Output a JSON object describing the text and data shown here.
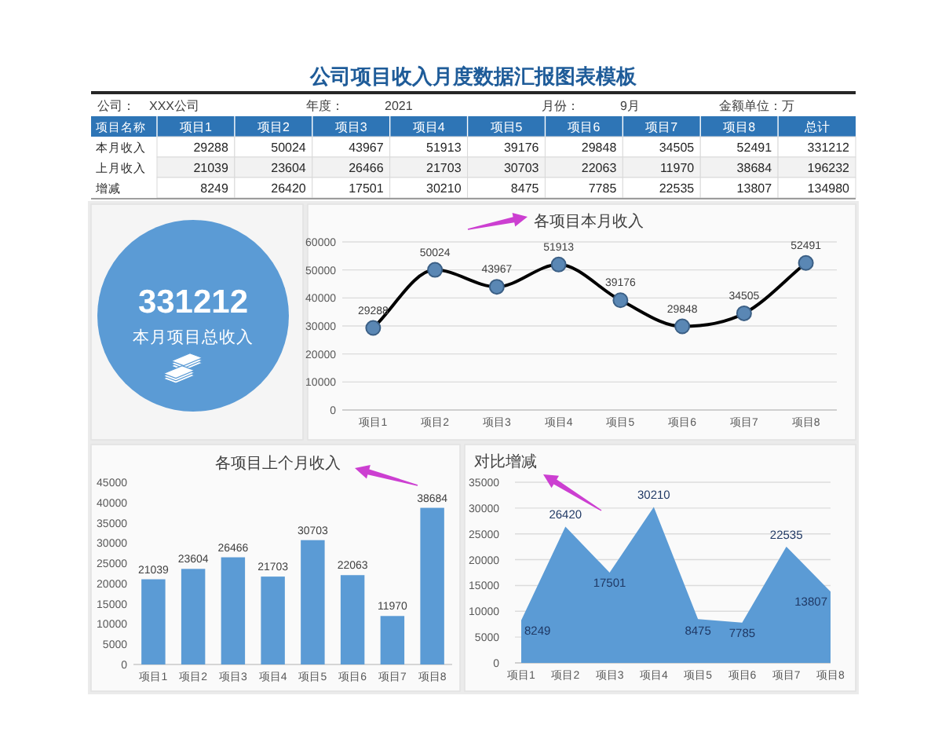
{
  "chart_data": [
    {
      "type": "heatmap",
      "title": "公司项目收入月度数据汇报图表模板",
      "xlabel": "项目名称",
      "annotations": [
        "公司：",
        "XXX公司",
        "年度：",
        "2021",
        "月份：",
        "9月",
        "金额单位：万"
      ],
      "categories": [
        "项目1",
        "项目2",
        "项目3",
        "项目4",
        "项目5",
        "项目6",
        "项目7",
        "项目8",
        "总计"
      ],
      "y_categories": [
        "本月收入",
        "上月收入",
        "增减"
      ],
      "cells": [
        [
          29288,
          50024,
          43967,
          51913,
          39176,
          29848,
          34505,
          52491,
          331212
        ],
        [
          21039,
          23604,
          26466,
          21703,
          30703,
          22063,
          11970,
          38684,
          196232
        ],
        [
          8249,
          26420,
          17501,
          30210,
          8475,
          7785,
          22535,
          13807,
          134980
        ]
      ],
      "data_labels": true
    },
    {
      "type": "other",
      "title": "本月项目总收入",
      "annotations": [
        "331212"
      ]
    },
    {
      "type": "line",
      "title": "各项目本月收入",
      "categories": [
        "项目1",
        "项目2",
        "项目3",
        "项目4",
        "项目5",
        "项目6",
        "项目7",
        "项目8"
      ],
      "values": [
        29288,
        50024,
        43967,
        51913,
        39176,
        29848,
        34505,
        52491
      ],
      "color": "#000000",
      "marker": "circle",
      "line_style": "solid",
      "ylim": [
        0,
        60000
      ],
      "yticks": [
        0,
        10000,
        20000,
        30000,
        40000,
        50000,
        60000
      ],
      "grid": "y",
      "data_labels": true
    },
    {
      "type": "bar",
      "title": "各项目上个月收入",
      "categories": [
        "项目1",
        "项目2",
        "项目3",
        "项目4",
        "项目5",
        "项目6",
        "项目7",
        "项目8"
      ],
      "values": [
        21039,
        23604,
        26466,
        21703,
        30703,
        22063,
        11970,
        38684
      ],
      "color": "#5b9bd5",
      "ylim": [
        0,
        45000
      ],
      "yticks": [
        0,
        5000,
        10000,
        15000,
        20000,
        25000,
        30000,
        35000,
        40000,
        45000
      ],
      "data_labels": true
    },
    {
      "type": "area",
      "title": "对比增减",
      "categories": [
        "项目1",
        "项目2",
        "项目3",
        "项目4",
        "项目5",
        "项目6",
        "项目7",
        "项目8"
      ],
      "values": [
        8249,
        26420,
        17501,
        30210,
        8475,
        7785,
        22535,
        13807
      ],
      "color": "#5b9bd5",
      "ylim": [
        0,
        35000
      ],
      "yticks": [
        0,
        5000,
        10000,
        15000,
        20000,
        25000,
        30000,
        35000
      ],
      "grid": "y",
      "data_labels": true
    }
  ]
}
